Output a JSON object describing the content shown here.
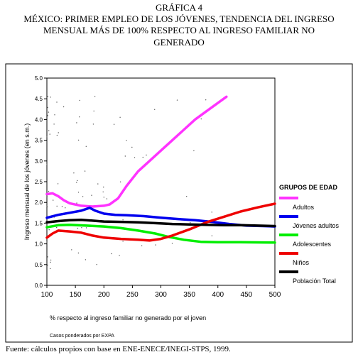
{
  "header": {
    "line1": "GRÁFICA 4",
    "line2": "MÉXICO: PRIMER EMPLEO DE LOS JÓVENES, TENDENCIA DEL INGRESO",
    "line3": "MENSUAL MÁS DE 100% RESPECTO AL INGRESO FAMILIAR NO",
    "line4": "GENERADO"
  },
  "footer": {
    "source": "Fuente: cálculos propios con base en ENE-ENECE/INEGI-STPS, 1999."
  },
  "chart_data": {
    "type": "line",
    "title": "",
    "xlabel": "% respecto al ingreso familiar no generado por el joven",
    "ylabel": "Ingreso mensual de los jóvenes (en s.m.)",
    "note": "Casos ponderados por EXPA",
    "xlim": [
      100,
      500
    ],
    "ylim": [
      0.0,
      5.0
    ],
    "x_ticks": [
      100,
      150,
      200,
      250,
      300,
      350,
      400,
      450,
      500
    ],
    "y_ticks": [
      "0.0",
      "0.5",
      "1.0",
      "1.5",
      "2.0",
      "2.5",
      "3.0",
      "3.5",
      "4.0",
      "4.5",
      "5.0"
    ],
    "legend_title": "GRUPOS DE EDAD",
    "legend_position": "right",
    "series": [
      {
        "name": "Adultos",
        "color": "#ff33ff",
        "points": [
          [
            100,
            2.2
          ],
          [
            110,
            2.22
          ],
          [
            120,
            2.15
          ],
          [
            130,
            2.05
          ],
          [
            140,
            1.98
          ],
          [
            160,
            1.92
          ],
          [
            180,
            1.9
          ],
          [
            200,
            1.92
          ],
          [
            210,
            1.95
          ],
          [
            225,
            2.1
          ],
          [
            240,
            2.4
          ],
          [
            260,
            2.75
          ],
          [
            280,
            3.0
          ],
          [
            300,
            3.25
          ],
          [
            320,
            3.5
          ],
          [
            340,
            3.75
          ],
          [
            360,
            4.0
          ],
          [
            380,
            4.2
          ],
          [
            415,
            4.55
          ]
        ]
      },
      {
        "name": "Jóvenes adultos",
        "color": "#0000ee",
        "points": [
          [
            100,
            1.63
          ],
          [
            120,
            1.7
          ],
          [
            140,
            1.75
          ],
          [
            160,
            1.8
          ],
          [
            175,
            1.87
          ],
          [
            185,
            1.8
          ],
          [
            200,
            1.73
          ],
          [
            220,
            1.7
          ],
          [
            240,
            1.69
          ],
          [
            270,
            1.67
          ],
          [
            300,
            1.63
          ],
          [
            330,
            1.6
          ],
          [
            360,
            1.57
          ],
          [
            390,
            1.53
          ],
          [
            420,
            1.48
          ],
          [
            450,
            1.44
          ],
          [
            480,
            1.43
          ],
          [
            500,
            1.42
          ]
        ]
      },
      {
        "name": "Adolescentes",
        "color": "#00ee00",
        "points": [
          [
            100,
            1.4
          ],
          [
            120,
            1.45
          ],
          [
            140,
            1.46
          ],
          [
            170,
            1.44
          ],
          [
            200,
            1.42
          ],
          [
            230,
            1.38
          ],
          [
            260,
            1.32
          ],
          [
            290,
            1.25
          ],
          [
            310,
            1.18
          ],
          [
            340,
            1.1
          ],
          [
            370,
            1.05
          ],
          [
            400,
            1.04
          ],
          [
            440,
            1.04
          ],
          [
            500,
            1.03
          ]
        ]
      },
      {
        "name": "Niños",
        "color": "#ee0000",
        "points": [
          [
            100,
            1.15
          ],
          [
            110,
            1.25
          ],
          [
            120,
            1.32
          ],
          [
            140,
            1.3
          ],
          [
            160,
            1.27
          ],
          [
            180,
            1.2
          ],
          [
            200,
            1.15
          ],
          [
            230,
            1.12
          ],
          [
            260,
            1.1
          ],
          [
            280,
            1.08
          ],
          [
            300,
            1.12
          ],
          [
            320,
            1.2
          ],
          [
            350,
            1.35
          ],
          [
            380,
            1.52
          ],
          [
            410,
            1.65
          ],
          [
            440,
            1.78
          ],
          [
            470,
            1.88
          ],
          [
            500,
            1.97
          ]
        ]
      },
      {
        "name": "Población Total",
        "color": "#000000",
        "points": [
          [
            100,
            1.52
          ],
          [
            120,
            1.55
          ],
          [
            140,
            1.57
          ],
          [
            160,
            1.58
          ],
          [
            180,
            1.56
          ],
          [
            200,
            1.54
          ],
          [
            230,
            1.53
          ],
          [
            260,
            1.52
          ],
          [
            290,
            1.5
          ],
          [
            320,
            1.48
          ],
          [
            350,
            1.47
          ],
          [
            380,
            1.46
          ],
          [
            410,
            1.45
          ],
          [
            440,
            1.45
          ],
          [
            470,
            1.44
          ],
          [
            500,
            1.43
          ]
        ]
      }
    ]
  }
}
